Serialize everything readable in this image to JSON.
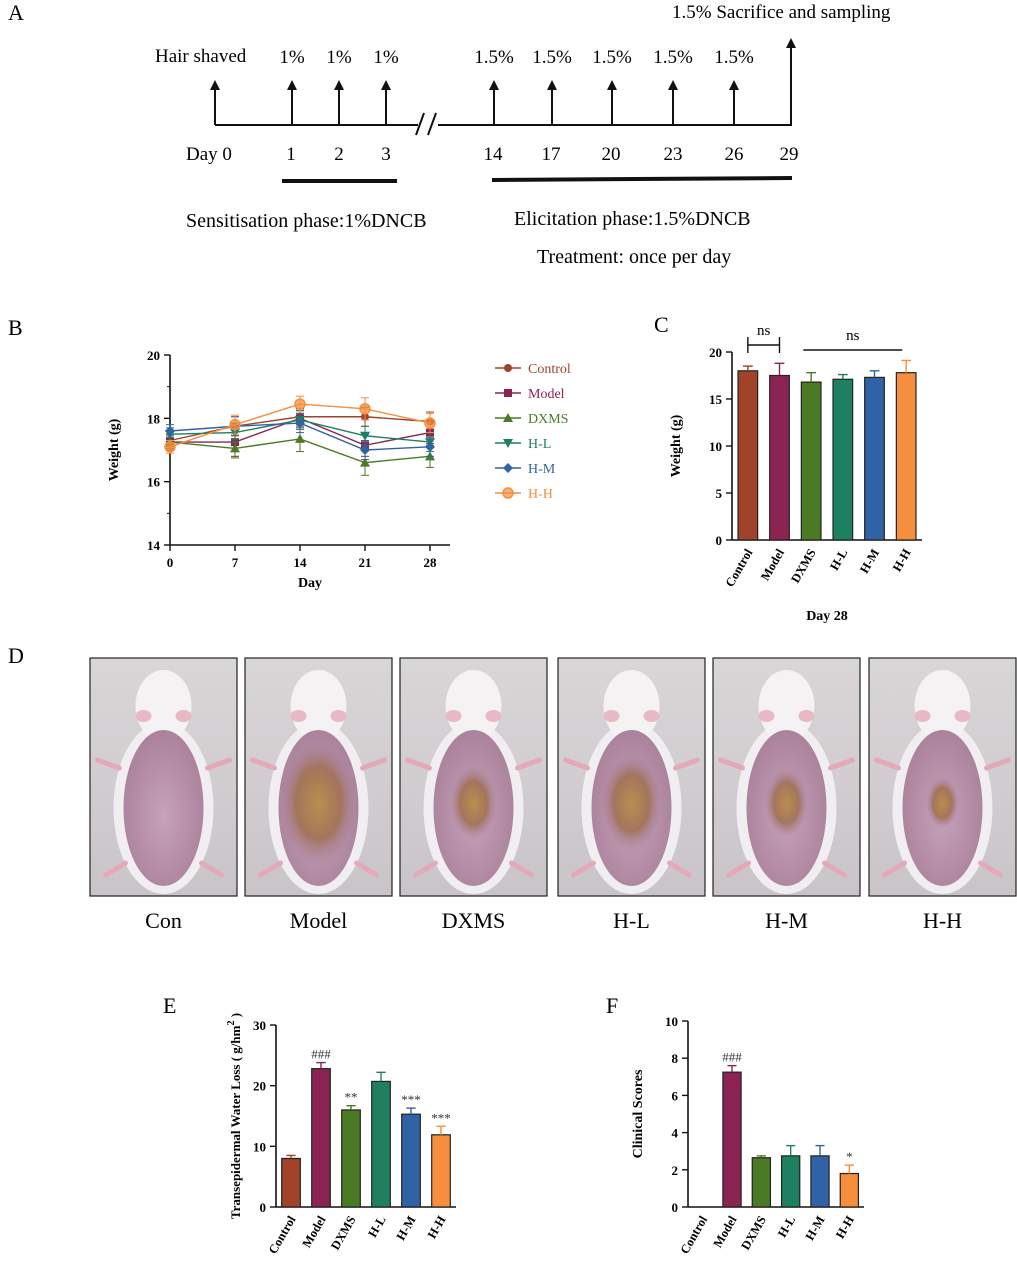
{
  "panels": {
    "a": "A",
    "b": "B",
    "c": "C",
    "d": "D",
    "e": "E",
    "f": "F"
  },
  "timeline": {
    "top_label": "1.5% Sacrifice and sampling",
    "hair_label": "Hair shaved",
    "day_label": "Day 0",
    "sens_doses": [
      "1%",
      "1%",
      "1%"
    ],
    "elic_doses": [
      "1.5%",
      "1.5%",
      "1.5%",
      "1.5%",
      "1.5%"
    ],
    "days": [
      "1",
      "2",
      "3",
      "14",
      "17",
      "20",
      "23",
      "26",
      "29"
    ],
    "sensitisation": "Sensitisation phase:1%DNCB",
    "elicitation": "Elicitation phase:1.5%DNCB",
    "treatment": "Treatment: once per day"
  },
  "colors": {
    "control": "#a0432a",
    "model": "#8b2452",
    "dxms": "#4b7a24",
    "hl": "#1e8060",
    "hm": "#2f63a5",
    "hh": "#f58e3d"
  },
  "photos": {
    "labels": [
      "Con",
      "Model",
      "DXMS",
      "H-L",
      "H-M",
      "H-H"
    ]
  },
  "chart_data": [
    {
      "id": "B",
      "type": "line",
      "xlabel": "Day",
      "ylabel": "Weight (g)",
      "x": [
        0,
        7,
        14,
        21,
        28
      ],
      "xlim": [
        0,
        28
      ],
      "ylim": [
        14,
        20
      ],
      "yticks": [
        14,
        16,
        18,
        20
      ],
      "legend_position": "right",
      "series": [
        {
          "name": "Control",
          "values": [
            17.3,
            17.75,
            18.05,
            18.05,
            17.9
          ],
          "errors": [
            0.2,
            0.3,
            0.25,
            0.3,
            0.3
          ]
        },
        {
          "name": "Model",
          "values": [
            17.25,
            17.25,
            18.0,
            17.15,
            17.55
          ],
          "errors": [
            0.25,
            0.45,
            0.3,
            0.35,
            0.35
          ]
        },
        {
          "name": "DXMS",
          "values": [
            17.25,
            17.05,
            17.35,
            16.6,
            16.8
          ],
          "errors": [
            0.2,
            0.3,
            0.4,
            0.4,
            0.35
          ]
        },
        {
          "name": "H-L",
          "values": [
            17.5,
            17.55,
            17.95,
            17.45,
            17.25
          ],
          "errors": [
            0.2,
            0.3,
            0.3,
            0.3,
            0.3
          ]
        },
        {
          "name": "H-M",
          "values": [
            17.6,
            17.75,
            17.85,
            17.0,
            17.1
          ],
          "errors": [
            0.2,
            0.3,
            0.3,
            0.3,
            0.3
          ]
        },
        {
          "name": "H-H",
          "values": [
            17.1,
            17.8,
            18.45,
            18.3,
            17.85
          ],
          "errors": [
            0.2,
            0.3,
            0.25,
            0.35,
            0.3
          ]
        }
      ]
    },
    {
      "id": "C",
      "type": "bar",
      "title": "",
      "xlabel": "Day 28",
      "ylabel": "Weight (g)",
      "categories": [
        "Control",
        "Model",
        "DXMS",
        "H-L",
        "H-M",
        "H-H"
      ],
      "values": [
        18.0,
        17.5,
        16.8,
        17.1,
        17.3,
        17.8
      ],
      "errors": [
        0.5,
        1.3,
        1.0,
        0.5,
        0.7,
        1.3
      ],
      "ylim": [
        0,
        20
      ],
      "yticks": [
        0,
        5,
        10,
        15,
        20
      ],
      "significance": [
        {
          "label": "ns",
          "from": 0,
          "to": 1
        },
        {
          "label": "ns",
          "from": 2,
          "to": 5
        }
      ]
    },
    {
      "id": "E",
      "type": "bar",
      "xlabel": "",
      "ylabel": "Transepidermal Water Loss ( g/hm",
      "ylabel_sup": "2",
      "ylabel_end": " )",
      "categories": [
        "Control",
        "Model",
        "DXMS",
        "H-L",
        "H-M",
        "H-H"
      ],
      "values": [
        8.0,
        22.8,
        16.0,
        20.7,
        15.3,
        11.9
      ],
      "errors": [
        0.5,
        1.0,
        0.7,
        1.5,
        1.0,
        1.4
      ],
      "ylim": [
        0,
        30
      ],
      "yticks": [
        0,
        10,
        20,
        30
      ],
      "annotations": [
        "",
        "###",
        "**",
        "",
        "***",
        "***"
      ]
    },
    {
      "id": "F",
      "type": "bar",
      "xlabel": "",
      "ylabel": "Clinical Scores",
      "categories": [
        "Control",
        "Model",
        "DXMS",
        "H-L",
        "H-M",
        "H-H"
      ],
      "values": [
        0,
        7.25,
        2.65,
        2.75,
        2.75,
        1.8
      ],
      "errors": [
        0,
        0.35,
        0.1,
        0.55,
        0.55,
        0.45
      ],
      "ylim": [
        0,
        10
      ],
      "yticks": [
        0,
        2,
        4,
        6,
        8,
        10
      ],
      "annotations": [
        "",
        "###",
        "",
        "",
        "",
        "*"
      ]
    }
  ]
}
